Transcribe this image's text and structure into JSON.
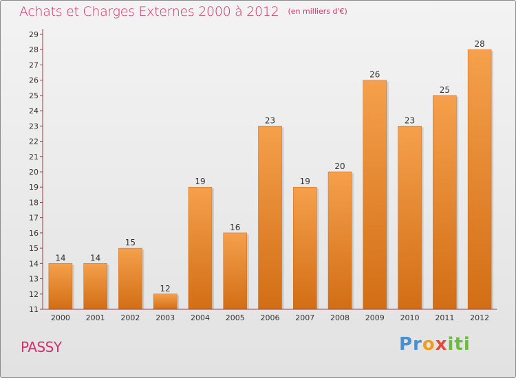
{
  "header": {
    "title": "Achats et Charges Externes 2000 à 2012",
    "unit": "(en milliers d'€)"
  },
  "footer": {
    "city": "PASSY",
    "logo": {
      "p1": "Pr",
      "p2": "o",
      "p3": "x",
      "p4": "iti"
    }
  },
  "colors": {
    "title": "#d2306b",
    "bar_top": "#f5a04c",
    "bar_bottom": "#d26e15",
    "axis": "#9a3b4a"
  },
  "chart_data": {
    "type": "bar",
    "title": "Achats et Charges Externes 2000 à 2012",
    "subtitle": "(en milliers d'€)",
    "categories": [
      "2000",
      "2001",
      "2002",
      "2003",
      "2004",
      "2005",
      "2006",
      "2007",
      "2008",
      "2009",
      "2010",
      "2011",
      "2012"
    ],
    "values": [
      14,
      14,
      15,
      12,
      19,
      16,
      23,
      19,
      20,
      26,
      23,
      25,
      28
    ],
    "ylim": [
      11,
      29
    ],
    "yticks": [
      11,
      12,
      13,
      14,
      15,
      16,
      17,
      18,
      19,
      20,
      21,
      22,
      23,
      24,
      25,
      26,
      27,
      28,
      29
    ],
    "xlabel": "",
    "ylabel": "",
    "grid": false,
    "data_labels": true
  }
}
